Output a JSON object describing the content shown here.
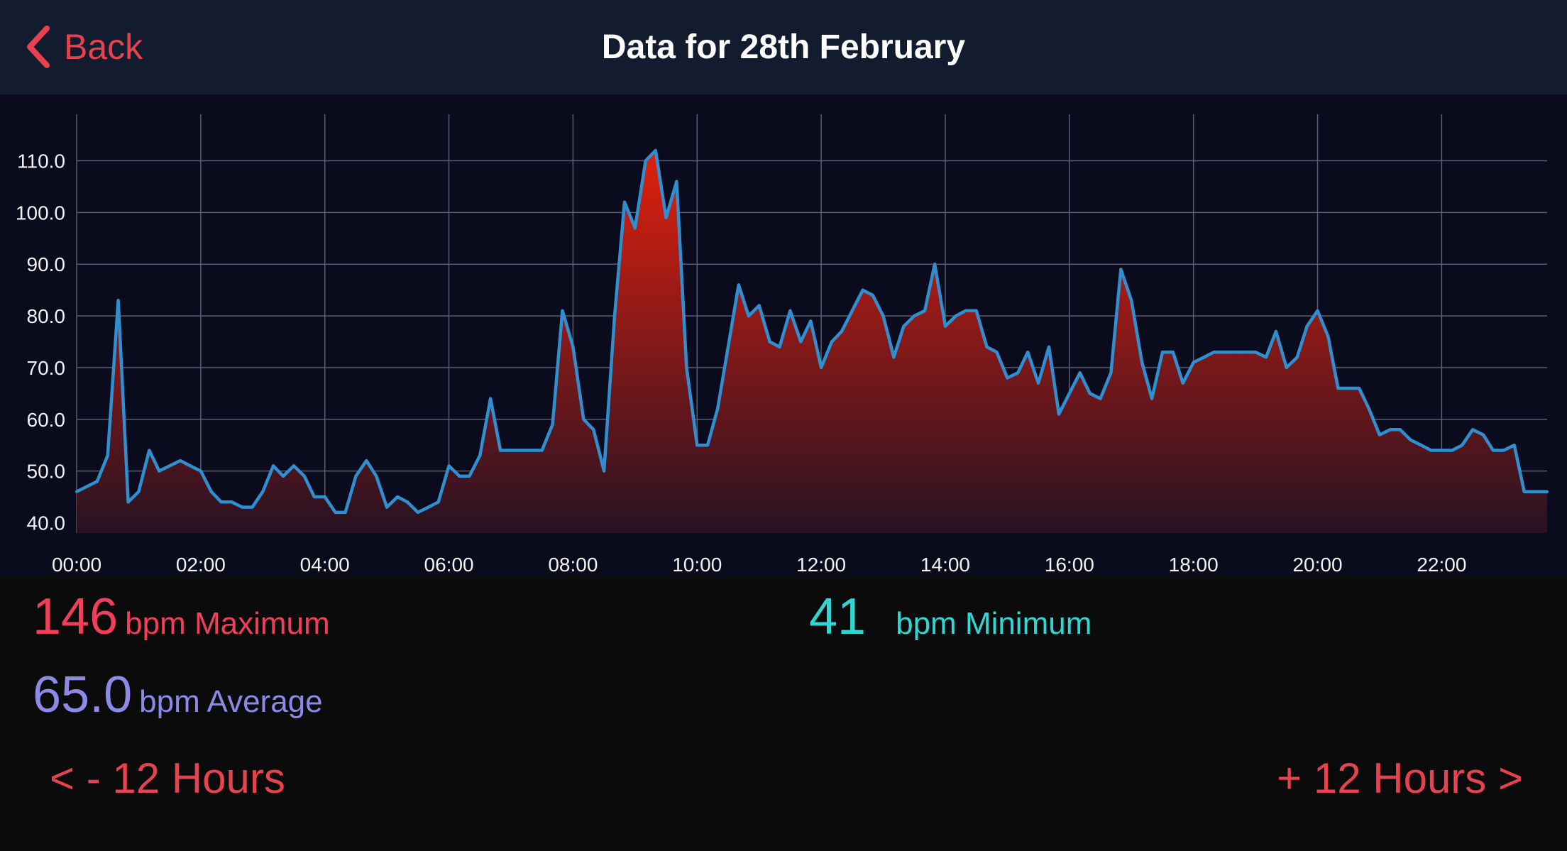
{
  "nav": {
    "back_label": "Back",
    "title": "Data for 28th February"
  },
  "colors": {
    "accent": "#e8424f",
    "line": "#2f8fd0",
    "fill_top": "#e0200e",
    "fill_bottom": "#281222",
    "max_color": "#ef3f5a",
    "min_color": "#2fd6d2",
    "avg_color": "#8c89e8"
  },
  "chart_data": {
    "type": "area",
    "title": "",
    "xlabel": "",
    "ylabel": "",
    "xlim": [
      0,
      23.7
    ],
    "ylim": [
      38,
      119
    ],
    "y_ticks": [
      40,
      50,
      60,
      70,
      80,
      90,
      100,
      110
    ],
    "y_tick_labels": [
      "40.0",
      "50.0",
      "60.0",
      "70.0",
      "80.0",
      "90.0",
      "100.0",
      "110.0"
    ],
    "x_ticks": [
      0,
      2,
      4,
      6,
      8,
      10,
      12,
      14,
      16,
      18,
      20,
      22
    ],
    "x_tick_labels": [
      "00:00",
      "02:00",
      "04:00",
      "06:00",
      "08:00",
      "10:00",
      "12:00",
      "14:00",
      "16:00",
      "18:00",
      "20:00",
      "22:00"
    ],
    "grid": true,
    "series": [
      {
        "x": [
          0,
          0.33,
          0.5,
          0.67,
          0.83,
          1.0,
          1.17,
          1.33,
          1.5,
          1.67,
          1.83,
          2.0,
          2.17,
          2.33,
          2.5,
          2.67,
          2.83,
          3.0,
          3.17,
          3.33,
          3.5,
          3.67,
          3.83,
          4.0,
          4.17,
          4.33,
          4.5,
          4.67,
          4.83,
          5.0,
          5.17,
          5.33,
          5.5,
          5.67,
          5.83,
          6.0,
          6.17,
          6.33,
          6.5,
          6.67,
          6.83,
          7.0,
          7.17,
          7.33,
          7.5,
          7.67,
          7.83,
          8.0,
          8.17,
          8.33,
          8.5,
          8.67,
          8.83,
          9.0,
          9.17,
          9.33,
          9.5,
          9.67,
          9.83,
          10.0,
          10.17,
          10.33,
          10.5,
          10.67,
          10.83,
          11.0,
          11.17,
          11.33,
          11.5,
          11.67,
          11.83,
          12.0,
          12.17,
          12.33,
          12.5,
          12.67,
          12.83,
          13.0,
          13.17,
          13.33,
          13.5,
          13.67,
          13.83,
          14.0,
          14.17,
          14.33,
          14.5,
          14.67,
          14.83,
          15.0,
          15.17,
          15.33,
          15.5,
          15.67,
          15.83,
          16.0,
          16.17,
          16.33,
          16.5,
          16.67,
          16.83,
          17.0,
          17.17,
          17.33,
          17.5,
          17.67,
          17.83,
          18.0,
          18.17,
          18.33,
          18.5,
          18.67,
          18.83,
          19.0,
          19.17,
          19.33,
          19.5,
          19.67,
          19.83,
          20.0,
          20.17,
          20.33,
          20.5,
          20.67,
          20.83,
          21.0,
          21.17,
          21.33,
          21.5,
          21.67,
          21.83,
          22.0,
          22.17,
          22.33,
          22.5,
          22.67,
          22.83,
          23.0,
          23.17,
          23.33,
          23.5,
          23.7
        ],
        "y": [
          46,
          48,
          53,
          83,
          44,
          46,
          54,
          50,
          51,
          52,
          51,
          50,
          46,
          44,
          44,
          43,
          43,
          46,
          51,
          49,
          51,
          49,
          45,
          45,
          42,
          42,
          49,
          52,
          49,
          43,
          45,
          44,
          42,
          43,
          44,
          51,
          49,
          49,
          53,
          64,
          54,
          54,
          54,
          54,
          54,
          59,
          81,
          74,
          60,
          58,
          50,
          80,
          102,
          97,
          110,
          112,
          99,
          106,
          70,
          55,
          55,
          62,
          74,
          86,
          80,
          82,
          75,
          74,
          81,
          75,
          79,
          70,
          75,
          77,
          81,
          85,
          84,
          80,
          72,
          78,
          80,
          81,
          90,
          78,
          80,
          81,
          81,
          74,
          73,
          68,
          69,
          73,
          67,
          74,
          61,
          65,
          69,
          65,
          64,
          69,
          89,
          83,
          71,
          64,
          73,
          73,
          67,
          71,
          72,
          73,
          73,
          73,
          73,
          73,
          72,
          77,
          70,
          72,
          78,
          81,
          76,
          66,
          66,
          66,
          62,
          57,
          58,
          58,
          56,
          55,
          54,
          54,
          54,
          55,
          58,
          57,
          54,
          54,
          55,
          46,
          46,
          46
        ]
      }
    ]
  },
  "stats": {
    "max": {
      "value": "146",
      "label": "bpm Maximum"
    },
    "min": {
      "value": "41",
      "label": "bpm Minimum"
    },
    "avg": {
      "value": "65.0",
      "label": "bpm Average"
    }
  },
  "controls": {
    "prev_label": "< - 12 Hours",
    "next_label": "+ 12 Hours >"
  }
}
